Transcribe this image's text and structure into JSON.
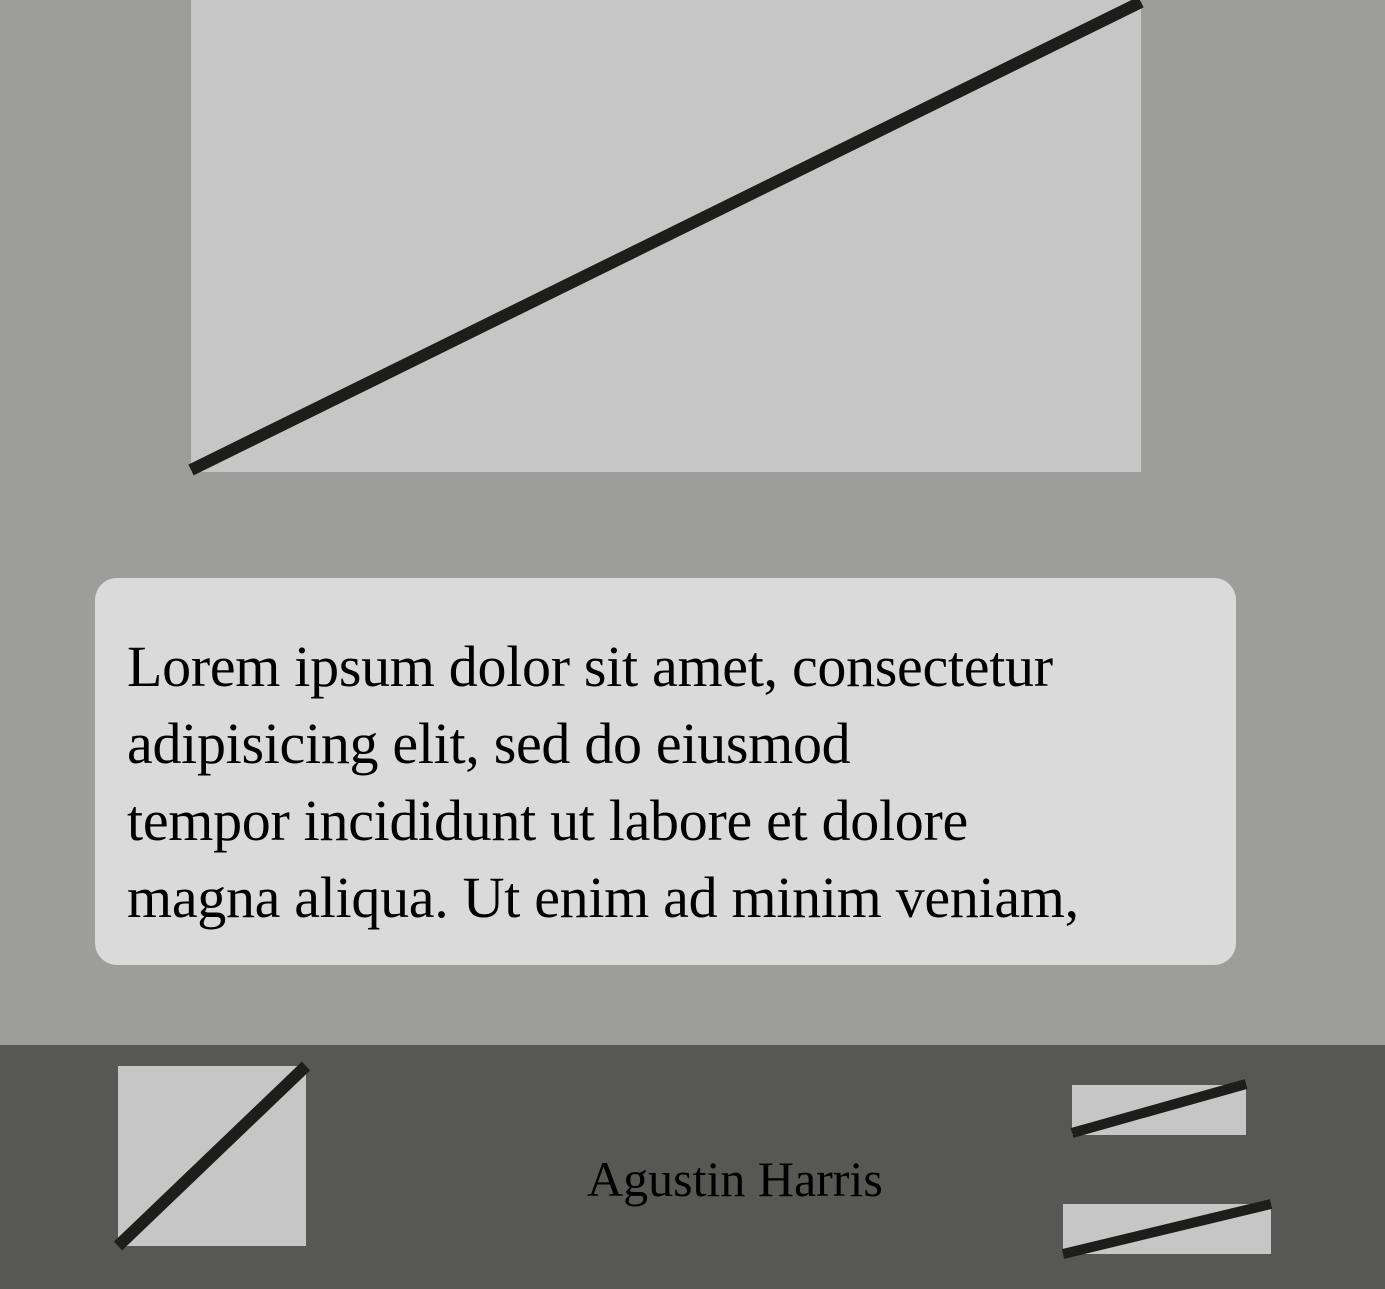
{
  "main": {
    "hero_image": {
      "icon": "image-placeholder-icon"
    },
    "text_card": {
      "body": "Lorem ipsum dolor sit amet, consectetur\nadipisicing elit, sed do eiusmod\ntempor incididunt ut labore et dolore\nmagna aliqua. Ut enim ad minim veniam,"
    }
  },
  "footer": {
    "avatar": {
      "icon": "image-placeholder-icon"
    },
    "name": "Agustin Harris",
    "thumbnails": [
      {
        "icon": "image-placeholder-icon"
      },
      {
        "icon": "image-placeholder-icon"
      }
    ]
  },
  "colors": {
    "page_background": "#9d9d9c",
    "placeholder_fill": "#c6c6c6",
    "placeholder_stroke": "#1d1d1b",
    "card_background": "#dadada",
    "footer_background": "#575756",
    "text": "#000000"
  }
}
